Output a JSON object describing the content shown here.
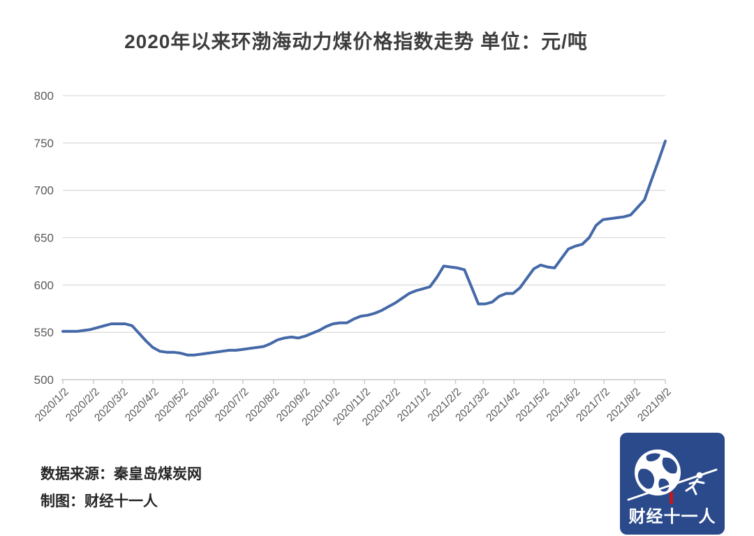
{
  "title": "2020年以来环渤海动力煤价格指数走势  单位：元/吨",
  "footer": {
    "source": "数据来源：秦皇岛煤炭网",
    "credit": "制图：财经十一人"
  },
  "logo": {
    "text": "财经十一人",
    "bg_color": "#2b4a8c",
    "accent_color": "#c4161c",
    "icon": "globe-javelin-runner"
  },
  "chart_data": {
    "type": "line",
    "title": "2020年以来环渤海动力煤价格指数走势",
    "unit": "元/吨",
    "series_name": "环渤海动力煤价格指数",
    "frequency": "weekly",
    "line_color": "#4569a8",
    "grid": true,
    "ylim": [
      500,
      800
    ],
    "y_ticks": [
      500,
      550,
      600,
      650,
      700,
      750,
      800
    ],
    "x_tick_labels": [
      "2020/1/2",
      "2020/2/2",
      "2020/3/2",
      "2020/4/2",
      "2020/5/2",
      "2020/6/2",
      "2020/7/2",
      "2020/8/2",
      "2020/9/2",
      "2020/10/2",
      "2020/11/2",
      "2020/12/2",
      "2021/1/2",
      "2021/2/2",
      "2021/3/2",
      "2021/4/2",
      "2021/5/2",
      "2021/6/2",
      "2021/7/2",
      "2021/8/2",
      "2021/9/2"
    ],
    "x_tick_weeks": [
      0,
      4.43,
      8.57,
      13,
      17.29,
      21.71,
      26,
      30.43,
      34.86,
      39.14,
      43.57,
      47.86,
      52.29,
      56.71,
      60.71,
      65.14,
      69.43,
      73.86,
      78.14,
      82.57,
      87
    ],
    "total_weeks": 87,
    "values": [
      551,
      551,
      551,
      552,
      553,
      555,
      557,
      559,
      559,
      559,
      557,
      549,
      541,
      534,
      530,
      529,
      529,
      528,
      526,
      526,
      527,
      528,
      529,
      530,
      531,
      531,
      532,
      533,
      534,
      535,
      538,
      542,
      544,
      545,
      544,
      546,
      549,
      552,
      556,
      559,
      560,
      560,
      564,
      567,
      568,
      570,
      573,
      577,
      581,
      586,
      591,
      594,
      596,
      598,
      608,
      620,
      619,
      618,
      616,
      598,
      580,
      580,
      582,
      588,
      591,
      591,
      597,
      607,
      617,
      621,
      619,
      618,
      628,
      638,
      641,
      643,
      650,
      663,
      669,
      670,
      671,
      672,
      674,
      682,
      690,
      711,
      731,
      752
    ],
    "last_value": 752,
    "first_value": 551,
    "peak_2021_jan": 620,
    "low_2020_may": 526
  }
}
